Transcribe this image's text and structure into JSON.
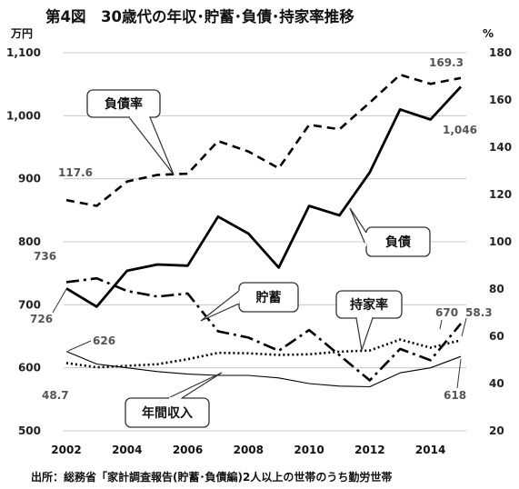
{
  "chart_data": {
    "type": "line",
    "title": "第4図　30歳代の年収･貯蓄･負債･持家率推移",
    "left_axis_unit": "万円",
    "right_axis_unit": "%",
    "x_ticks": [
      "2002",
      "2004",
      "2006",
      "2008",
      "2010",
      "2012",
      "2014"
    ],
    "y_left_ticks": [
      "500",
      "600",
      "700",
      "800",
      "900",
      "1,000",
      "1,100"
    ],
    "y_right_ticks": [
      "20",
      "40",
      "60",
      "80",
      "100",
      "120",
      "140",
      "160",
      "180"
    ],
    "ylim_left": [
      500,
      1100
    ],
    "ylim_right": [
      20,
      180
    ],
    "x_years": [
      2002,
      2003,
      2004,
      2005,
      2006,
      2007,
      2008,
      2009,
      2010,
      2011,
      2012,
      2013,
      2014,
      2015
    ],
    "grid": "horizontal",
    "series": [
      {
        "name": "負債率",
        "axis": "right",
        "style": "dashed",
        "values": [
          117.6,
          115.2,
          125.5,
          128.3,
          128.8,
          142.6,
          138.2,
          131.1,
          149.5,
          147.6,
          158.9,
          170.7,
          166.8,
          169.3
        ]
      },
      {
        "name": "負債",
        "axis": "left",
        "style": "solid-thick",
        "values": [
          726,
          697,
          754,
          764,
          762,
          840,
          813,
          759,
          857,
          842,
          910,
          1010,
          994,
          1046
        ]
      },
      {
        "name": "貯蓄",
        "axis": "left",
        "style": "dashdot",
        "values": [
          736,
          742,
          722,
          713,
          718,
          658,
          648,
          627,
          660,
          620,
          580,
          630,
          612,
          670
        ]
      },
      {
        "name": "持家率",
        "axis": "right",
        "style": "dotted",
        "values": [
          48.7,
          46.9,
          47.5,
          48.2,
          50.3,
          53.0,
          52.8,
          52.1,
          52.4,
          53.5,
          54.0,
          58.6,
          55.2,
          58.3
        ]
      },
      {
        "name": "年間収入",
        "axis": "left",
        "style": "solid-thin",
        "values": [
          626,
          606,
          600,
          594,
          590,
          588,
          588,
          584,
          575,
          571,
          570,
          592,
          600,
          618
        ]
      }
    ],
    "data_labels": [
      {
        "series": "負債率",
        "year": 2002,
        "text": "117.6"
      },
      {
        "series": "負債率",
        "year": 2015,
        "text": "169.3"
      },
      {
        "series": "負債",
        "year": 2002,
        "text": "726"
      },
      {
        "series": "負債",
        "year": 2015,
        "text": "1,046"
      },
      {
        "series": "貯蓄",
        "year": 2002,
        "text": "736"
      },
      {
        "series": "貯蓄",
        "year": 2015,
        "text": "670"
      },
      {
        "series": "持家率",
        "year": 2002,
        "text": "48.7"
      },
      {
        "series": "持家率",
        "year": 2015,
        "text": "58.3"
      },
      {
        "series": "年間収入",
        "year": 2002,
        "text": "626"
      },
      {
        "series": "年間収入",
        "year": 2015,
        "text": "618"
      }
    ],
    "callouts": [
      {
        "series": "負債率",
        "text": "負債率"
      },
      {
        "series": "負債",
        "text": "負債"
      },
      {
        "series": "貯蓄",
        "text": "貯蓄"
      },
      {
        "series": "持家率",
        "text": "持家率"
      },
      {
        "series": "年間収入",
        "text": "年間収入"
      }
    ],
    "source": "出所：総務省「家計調査報告(貯蓄･負債編)2人以上の世帯のうち勤労世帯"
  }
}
